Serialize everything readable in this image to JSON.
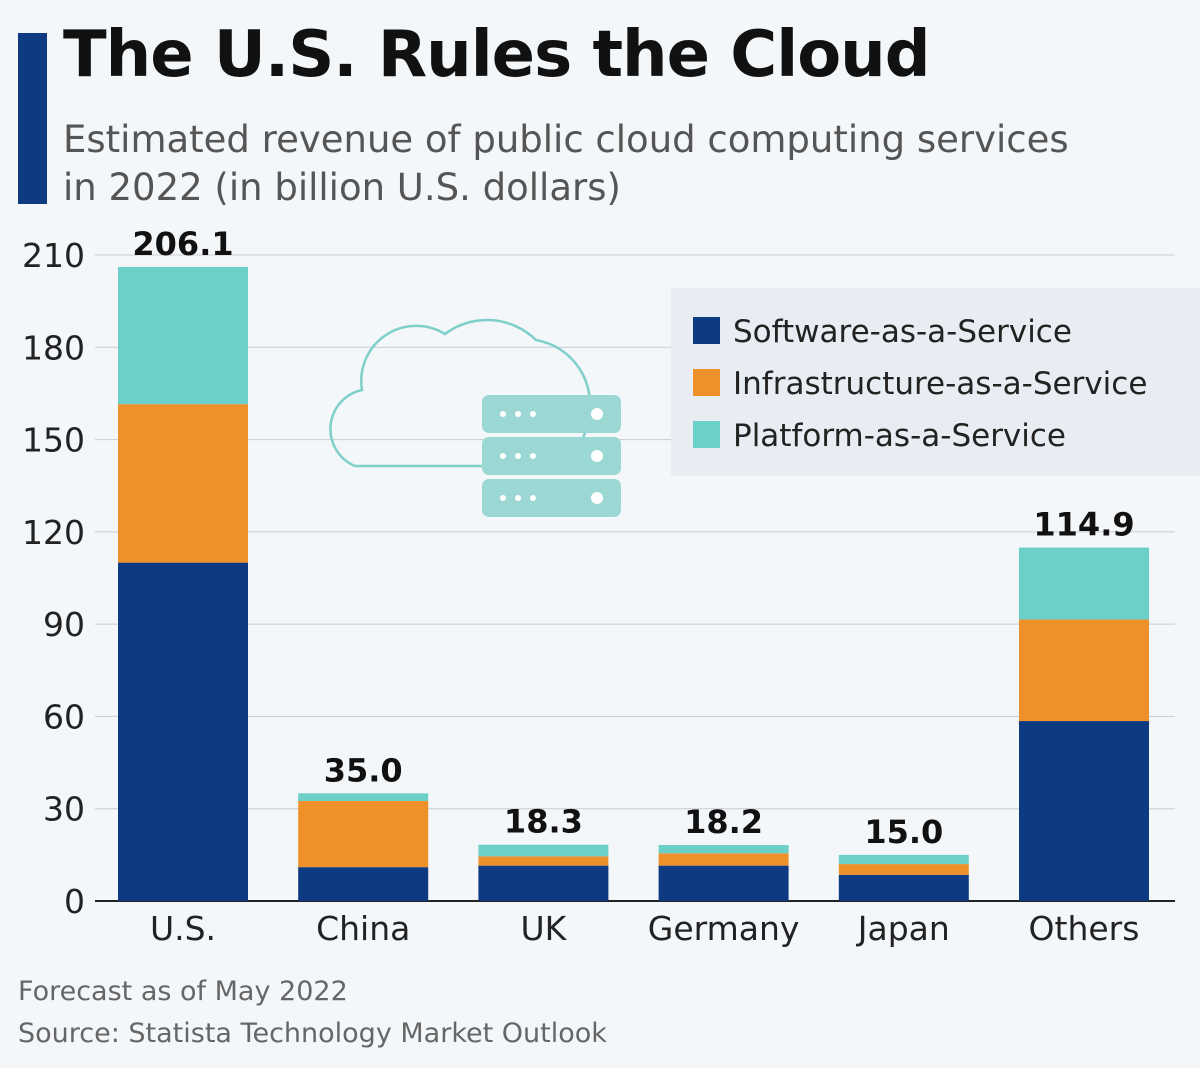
{
  "header": {
    "title": "The U.S. Rules the Cloud",
    "subtitle": "Estimated revenue of public cloud computing services in 2022 (in billion U.S. dollars)"
  },
  "footer": {
    "note": "Forecast as of May 2022",
    "source": "Source: Statista Technology Market Outlook"
  },
  "illustration": {
    "icon": "cloud-server-icon"
  },
  "chart_data": {
    "type": "bar",
    "stacked": true,
    "categories": [
      "U.S.",
      "China",
      "UK",
      "Germany",
      "Japan",
      "Others"
    ],
    "series": [
      {
        "name": "Software-as-a-Service",
        "color": "#0d3a80",
        "values": [
          110.0,
          11.0,
          11.5,
          11.5,
          8.5,
          58.5
        ]
      },
      {
        "name": "Infrastructure-as-a-Service",
        "color": "#ef912b",
        "values": [
          51.5,
          21.5,
          3.0,
          4.0,
          3.5,
          33.0
        ]
      },
      {
        "name": "Platform-as-a-Service",
        "color": "#6dd0c8",
        "values": [
          44.6,
          2.5,
          3.8,
          2.7,
          3.0,
          23.4
        ]
      }
    ],
    "totals": [
      "206.1",
      "35.0",
      "18.3",
      "18.2",
      "15.0",
      "114.9"
    ],
    "yticks": [
      0,
      30,
      60,
      90,
      120,
      150,
      180,
      210
    ],
    "ylim": [
      0,
      210
    ],
    "grid": true,
    "legend_position": "top-right"
  }
}
